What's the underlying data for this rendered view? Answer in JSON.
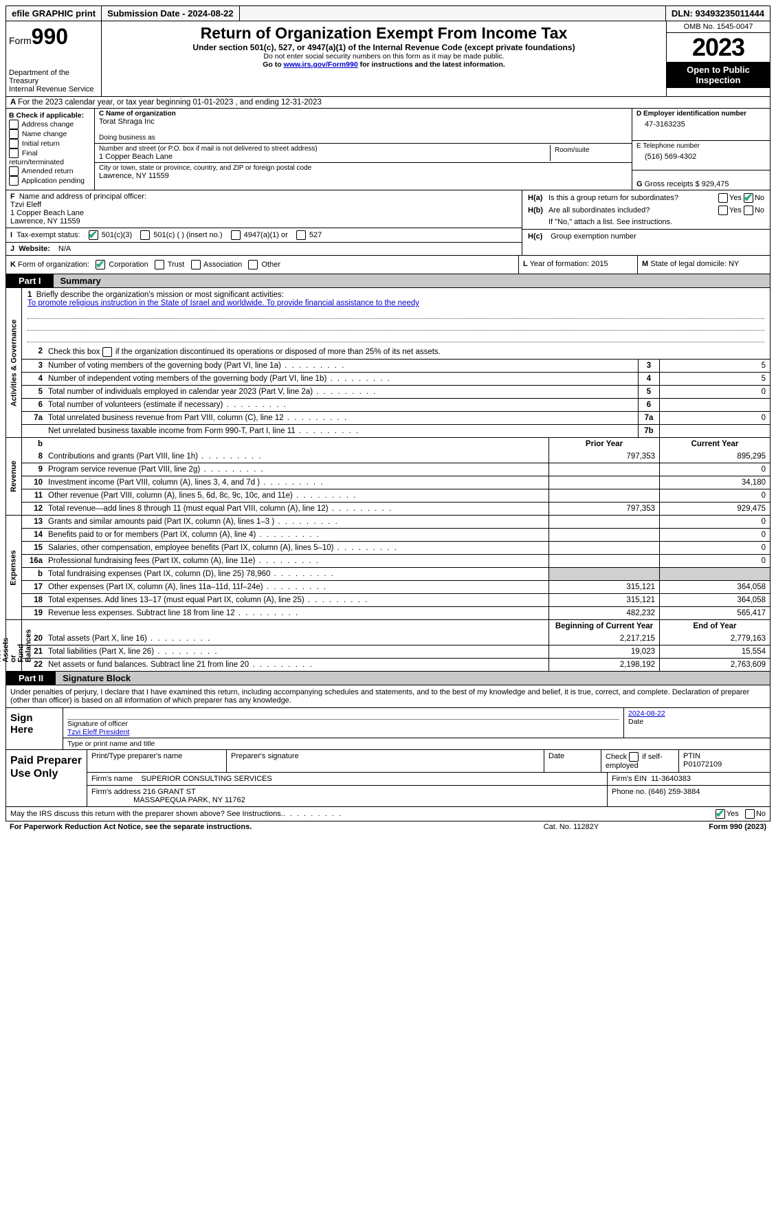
{
  "topbar": {
    "efile": "efile GRAPHIC print",
    "subdate_label": "Submission Date - ",
    "subdate": "2024-08-22",
    "dln_label": "DLN: ",
    "dln": "93493235011444"
  },
  "header": {
    "form_prefix": "Form",
    "form_num": "990",
    "dept": "Department of the Treasury\nInternal Revenue Service",
    "title": "Return of Organization Exempt From Income Tax",
    "sub1": "Under section 501(c), 527, or 4947(a)(1) of the Internal Revenue Code (except private foundations)",
    "sub2": "Do not enter social security numbers on this form as it may be made public.",
    "sub3_pre": "Go to ",
    "sub3_link": "www.irs.gov/Form990",
    "sub3_post": " for instructions and the latest information.",
    "omb": "OMB No. 1545-0047",
    "year": "2023",
    "inspection": "Open to Public Inspection"
  },
  "line_a": "For the 2023 calendar year, or tax year beginning 01-01-2023   , and ending 12-31-2023",
  "box_b": {
    "header": "B Check if applicable:",
    "items": [
      "Address change",
      "Name change",
      "Initial return",
      "Final return/terminated",
      "Amended return",
      "Application pending"
    ]
  },
  "box_c": {
    "name_label": "C Name of organization",
    "name": "Torat Shraga Inc",
    "dba_label": "Doing business as",
    "dba": "",
    "addr_label": "Number and street (or P.O. box if mail is not delivered to street address)",
    "addr": "1 Copper Beach Lane",
    "room_label": "Room/suite",
    "city_label": "City or town, state or province, country, and ZIP or foreign postal code",
    "city": "Lawrence, NY  11559"
  },
  "box_d": {
    "label": "D Employer identification number",
    "value": "47-3163235"
  },
  "box_e": {
    "label": "E Telephone number",
    "value": "(516) 569-4302"
  },
  "box_g": {
    "label": "G",
    "text": "Gross receipts $ ",
    "value": "929,475"
  },
  "box_f": {
    "label": "F",
    "text": "Name and address of principal officer:",
    "name": "Tzvi Eleff",
    "addr1": "1 Copper Beach Lane",
    "addr2": "Lawrence, NY  11559"
  },
  "box_h": {
    "a_label": "H(a)",
    "a_text": "Is this a group return for subordinates?",
    "b_label": "H(b)",
    "b_text": "Are all subordinates included?",
    "b_note": "If \"No,\" attach a list. See instructions.",
    "c_label": "H(c)",
    "c_text": "Group exemption number",
    "yes": "Yes",
    "no": "No"
  },
  "box_i": {
    "label": "I",
    "text": "Tax-exempt status:",
    "opts": [
      "501(c)(3)",
      "501(c) (  ) (insert no.)",
      "4947(a)(1) or",
      "527"
    ]
  },
  "box_j": {
    "label": "J",
    "text": "Website:",
    "value": "N/A"
  },
  "box_k": {
    "label": "K",
    "text": "Form of organization:",
    "opts": [
      "Corporation",
      "Trust",
      "Association",
      "Other"
    ]
  },
  "box_l": {
    "label": "L",
    "text": "Year of formation: ",
    "value": "2015"
  },
  "box_m": {
    "label": "M",
    "text": "State of legal domicile: ",
    "value": "NY"
  },
  "part1": {
    "tab": "Part I",
    "title": "Summary"
  },
  "mission": {
    "num": "1",
    "label": "Briefly describe the organization's mission or most significant activities:",
    "text": "To promote religious instruction in the State of Israel and worldwide. To provide financial assistance to the needy"
  },
  "gov_rows": [
    {
      "n": "2",
      "desc": "Check this box      if the organization discontinued its operations or disposed of more than 25% of its net assets.",
      "box": "",
      "v": ""
    },
    {
      "n": "3",
      "desc": "Number of voting members of the governing body (Part VI, line 1a)",
      "box": "3",
      "v": "5"
    },
    {
      "n": "4",
      "desc": "Number of independent voting members of the governing body (Part VI, line 1b)",
      "box": "4",
      "v": "5"
    },
    {
      "n": "5",
      "desc": "Total number of individuals employed in calendar year 2023 (Part V, line 2a)",
      "box": "5",
      "v": "0"
    },
    {
      "n": "6",
      "desc": "Total number of volunteers (estimate if necessary)",
      "box": "6",
      "v": ""
    },
    {
      "n": "7a",
      "desc": "Total unrelated business revenue from Part VIII, column (C), line 12",
      "box": "7a",
      "v": "0"
    },
    {
      "n": "",
      "desc": "Net unrelated business taxable income from Form 990-T, Part I, line 11",
      "box": "7b",
      "v": ""
    }
  ],
  "cols": {
    "prior": "Prior Year",
    "current": "Current Year",
    "boy": "Beginning of Current Year",
    "eoy": "End of Year"
  },
  "revenue": [
    {
      "n": "8",
      "desc": "Contributions and grants (Part VIII, line 1h)",
      "p": "797,353",
      "c": "895,295"
    },
    {
      "n": "9",
      "desc": "Program service revenue (Part VIII, line 2g)",
      "p": "",
      "c": "0"
    },
    {
      "n": "10",
      "desc": "Investment income (Part VIII, column (A), lines 3, 4, and 7d )",
      "p": "",
      "c": "34,180"
    },
    {
      "n": "11",
      "desc": "Other revenue (Part VIII, column (A), lines 5, 6d, 8c, 9c, 10c, and 11e)",
      "p": "",
      "c": "0"
    },
    {
      "n": "12",
      "desc": "Total revenue—add lines 8 through 11 (must equal Part VIII, column (A), line 12)",
      "p": "797,353",
      "c": "929,475"
    }
  ],
  "expenses": [
    {
      "n": "13",
      "desc": "Grants and similar amounts paid (Part IX, column (A), lines 1–3 )",
      "p": "",
      "c": "0"
    },
    {
      "n": "14",
      "desc": "Benefits paid to or for members (Part IX, column (A), line 4)",
      "p": "",
      "c": "0"
    },
    {
      "n": "15",
      "desc": "Salaries, other compensation, employee benefits (Part IX, column (A), lines 5–10)",
      "p": "",
      "c": "0"
    },
    {
      "n": "16a",
      "desc": "Professional fundraising fees (Part IX, column (A), line 11e)",
      "p": "",
      "c": "0"
    },
    {
      "n": "b",
      "desc": "Total fundraising expenses (Part IX, column (D), line 25) 78,960",
      "p": "__SHADE__",
      "c": "__SHADE__"
    },
    {
      "n": "17",
      "desc": "Other expenses (Part IX, column (A), lines 11a–11d, 11f–24e)",
      "p": "315,121",
      "c": "364,058"
    },
    {
      "n": "18",
      "desc": "Total expenses. Add lines 13–17 (must equal Part IX, column (A), line 25)",
      "p": "315,121",
      "c": "364,058"
    },
    {
      "n": "19",
      "desc": "Revenue less expenses. Subtract line 18 from line 12",
      "p": "482,232",
      "c": "565,417"
    }
  ],
  "netassets": [
    {
      "n": "20",
      "desc": "Total assets (Part X, line 16)",
      "p": "2,217,215",
      "c": "2,779,163"
    },
    {
      "n": "21",
      "desc": "Total liabilities (Part X, line 26)",
      "p": "19,023",
      "c": "15,554"
    },
    {
      "n": "22",
      "desc": "Net assets or fund balances. Subtract line 21 from line 20",
      "p": "2,198,192",
      "c": "2,763,609"
    }
  ],
  "vlabels": {
    "gov": "Activities & Governance",
    "rev": "Revenue",
    "exp": "Expenses",
    "na": "Net Assets or\nFund Balances"
  },
  "part2": {
    "tab": "Part II",
    "title": "Signature Block"
  },
  "sig": {
    "text": "Under penalties of perjury, I declare that I have examined this return, including accompanying schedules and statements, and to the best of my knowledge and belief, it is true, correct, and complete. Declaration of preparer (other than officer) is based on all information of which preparer has any knowledge.",
    "sign_here": "Sign Here",
    "sig_of_officer": "Signature of officer",
    "date": "Date",
    "date_val": "2024-08-22",
    "officer": "Tzvi Eleff  President",
    "type_name": "Type or print name and title"
  },
  "prep": {
    "header": "Paid Preparer Use Only",
    "r1": {
      "c1": "Print/Type preparer's name",
      "c2": "Preparer's signature",
      "c3": "Date",
      "c4_pre": "Check",
      "c4_post": "if self-employed",
      "c5_label": "PTIN",
      "c5": "P01072109"
    },
    "r2": {
      "label": "Firm's name",
      "val": "SUPERIOR CONSULTING SERVICES",
      "ein_label": "Firm's EIN",
      "ein": "11-3640383"
    },
    "r3": {
      "label": "Firm's address",
      "val1": "216 GRANT ST",
      "val2": "MASSAPEQUA PARK, NY  11762",
      "ph_label": "Phone no.",
      "ph": "(646) 259-3884"
    }
  },
  "footer": {
    "discuss": "May the IRS discuss this return with the preparer shown above? See Instructions.",
    "yes": "Yes",
    "no": "No",
    "paperwork": "For Paperwork Reduction Act Notice, see the separate instructions.",
    "cat": "Cat. No. 11282Y",
    "form": "Form 990 (2023)"
  }
}
